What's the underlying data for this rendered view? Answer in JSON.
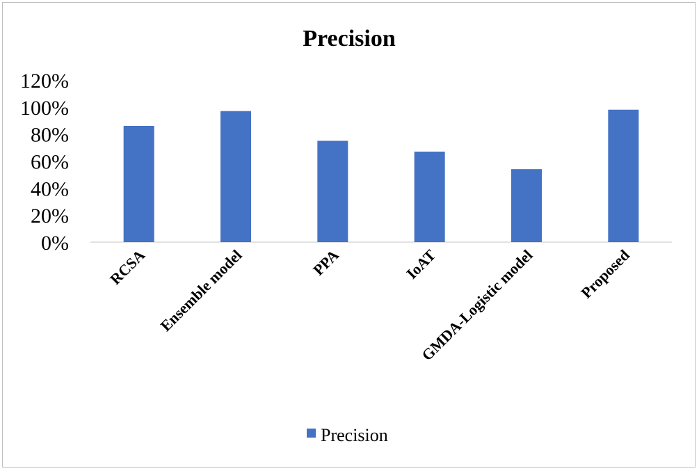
{
  "chart_data": {
    "type": "bar",
    "title": "Precision",
    "xlabel": "",
    "ylabel": "",
    "categories": [
      "RCSA",
      "Ensemble model",
      "PPA",
      "IoAT",
      "GMDA-Logistic model",
      "Proposed"
    ],
    "series": [
      {
        "name": "Precision",
        "values": [
          86,
          97,
          75,
          67,
          54,
          98
        ]
      }
    ],
    "ylim": [
      0,
      120
    ],
    "yticks": [
      "0%",
      "20%",
      "40%",
      "60%",
      "80%",
      "100%",
      "120%"
    ],
    "ytick_values": [
      0,
      20,
      40,
      60,
      80,
      100,
      120
    ],
    "grid": false,
    "legend": "bottom",
    "bar_color": "#4472c4"
  }
}
